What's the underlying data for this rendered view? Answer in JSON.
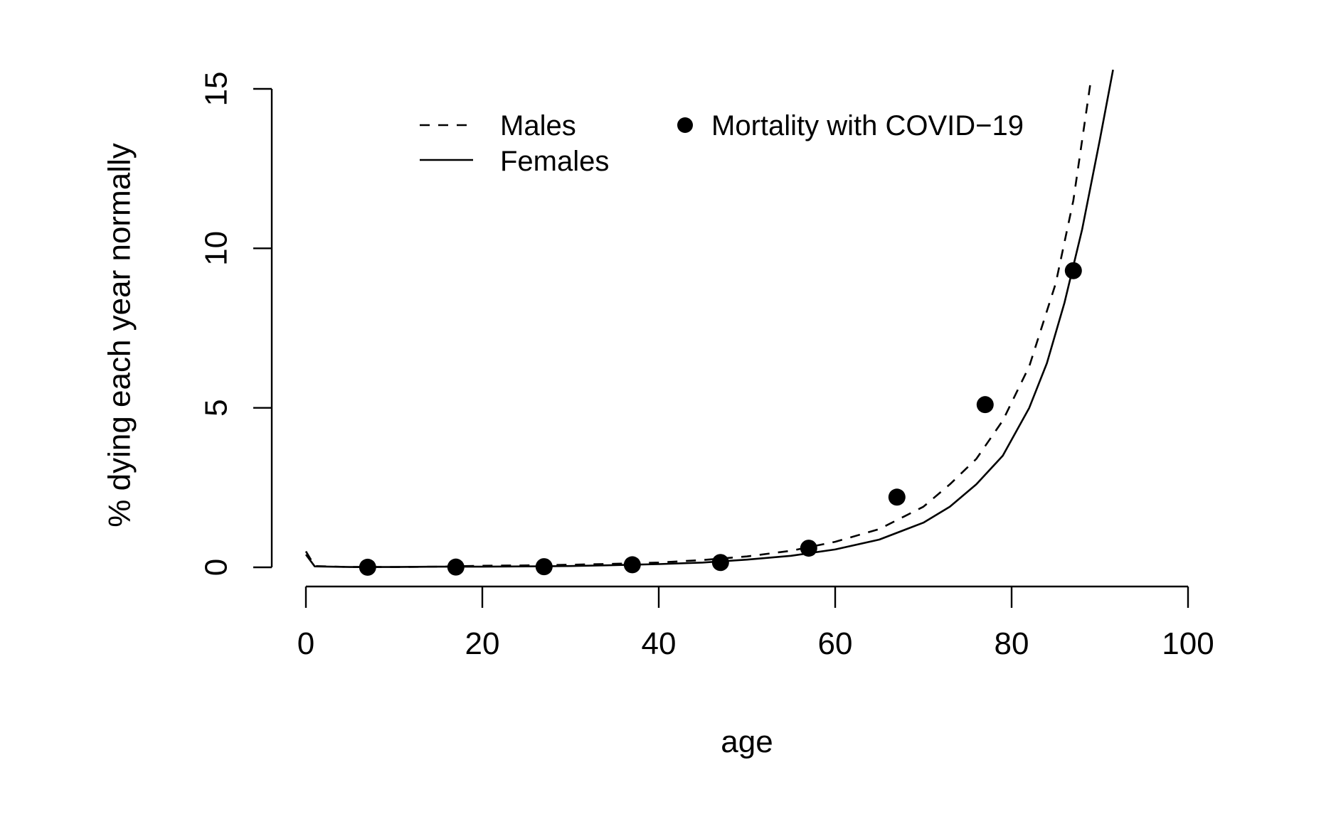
{
  "chart_data": {
    "type": "line",
    "title": "",
    "xlabel": "age",
    "ylabel": "% dying each year normally",
    "xlim": [
      0,
      100
    ],
    "ylim": [
      0,
      15
    ],
    "x_ticks": [
      "0",
      "20",
      "40",
      "60",
      "80",
      "100"
    ],
    "y_ticks": [
      "0",
      "5",
      "10",
      "15"
    ],
    "grid": false,
    "legend_position": "top",
    "colors": {
      "line": "#000000",
      "points": "#000000",
      "background": "#ffffff"
    },
    "legend": [
      {
        "label": "Males",
        "style": "dashed-line"
      },
      {
        "label": "Females",
        "style": "solid-line"
      },
      {
        "label": "Mortality with COVID−19",
        "style": "filled-circle"
      }
    ],
    "series": [
      {
        "name": "Males",
        "style": "dashed",
        "x": [
          0,
          1,
          5,
          10,
          15,
          20,
          25,
          30,
          35,
          40,
          45,
          50,
          55,
          60,
          65,
          70,
          73,
          76,
          79,
          82,
          85,
          87,
          89
        ],
        "y": [
          0.5,
          0.04,
          0.01,
          0.01,
          0.02,
          0.05,
          0.06,
          0.08,
          0.11,
          0.15,
          0.23,
          0.34,
          0.52,
          0.8,
          1.2,
          1.9,
          2.6,
          3.4,
          4.6,
          6.3,
          8.9,
          11.5,
          15.3
        ]
      },
      {
        "name": "Females",
        "style": "solid",
        "x": [
          0,
          1,
          5,
          10,
          15,
          20,
          25,
          30,
          35,
          40,
          45,
          50,
          55,
          60,
          65,
          70,
          73,
          76,
          79,
          82,
          84,
          86,
          88,
          90,
          91.5
        ],
        "y": [
          0.4,
          0.03,
          0.01,
          0.01,
          0.02,
          0.02,
          0.03,
          0.04,
          0.07,
          0.1,
          0.15,
          0.24,
          0.36,
          0.56,
          0.87,
          1.4,
          1.9,
          2.6,
          3.5,
          5.0,
          6.4,
          8.3,
          10.6,
          13.4,
          15.6
        ]
      },
      {
        "name": "Mortality with COVID−19",
        "style": "points",
        "x": [
          7,
          17,
          27,
          37,
          47,
          57,
          67,
          77,
          87
        ],
        "y": [
          0.002,
          0.007,
          0.02,
          0.08,
          0.15,
          0.6,
          2.2,
          5.1,
          9.3
        ]
      }
    ]
  }
}
